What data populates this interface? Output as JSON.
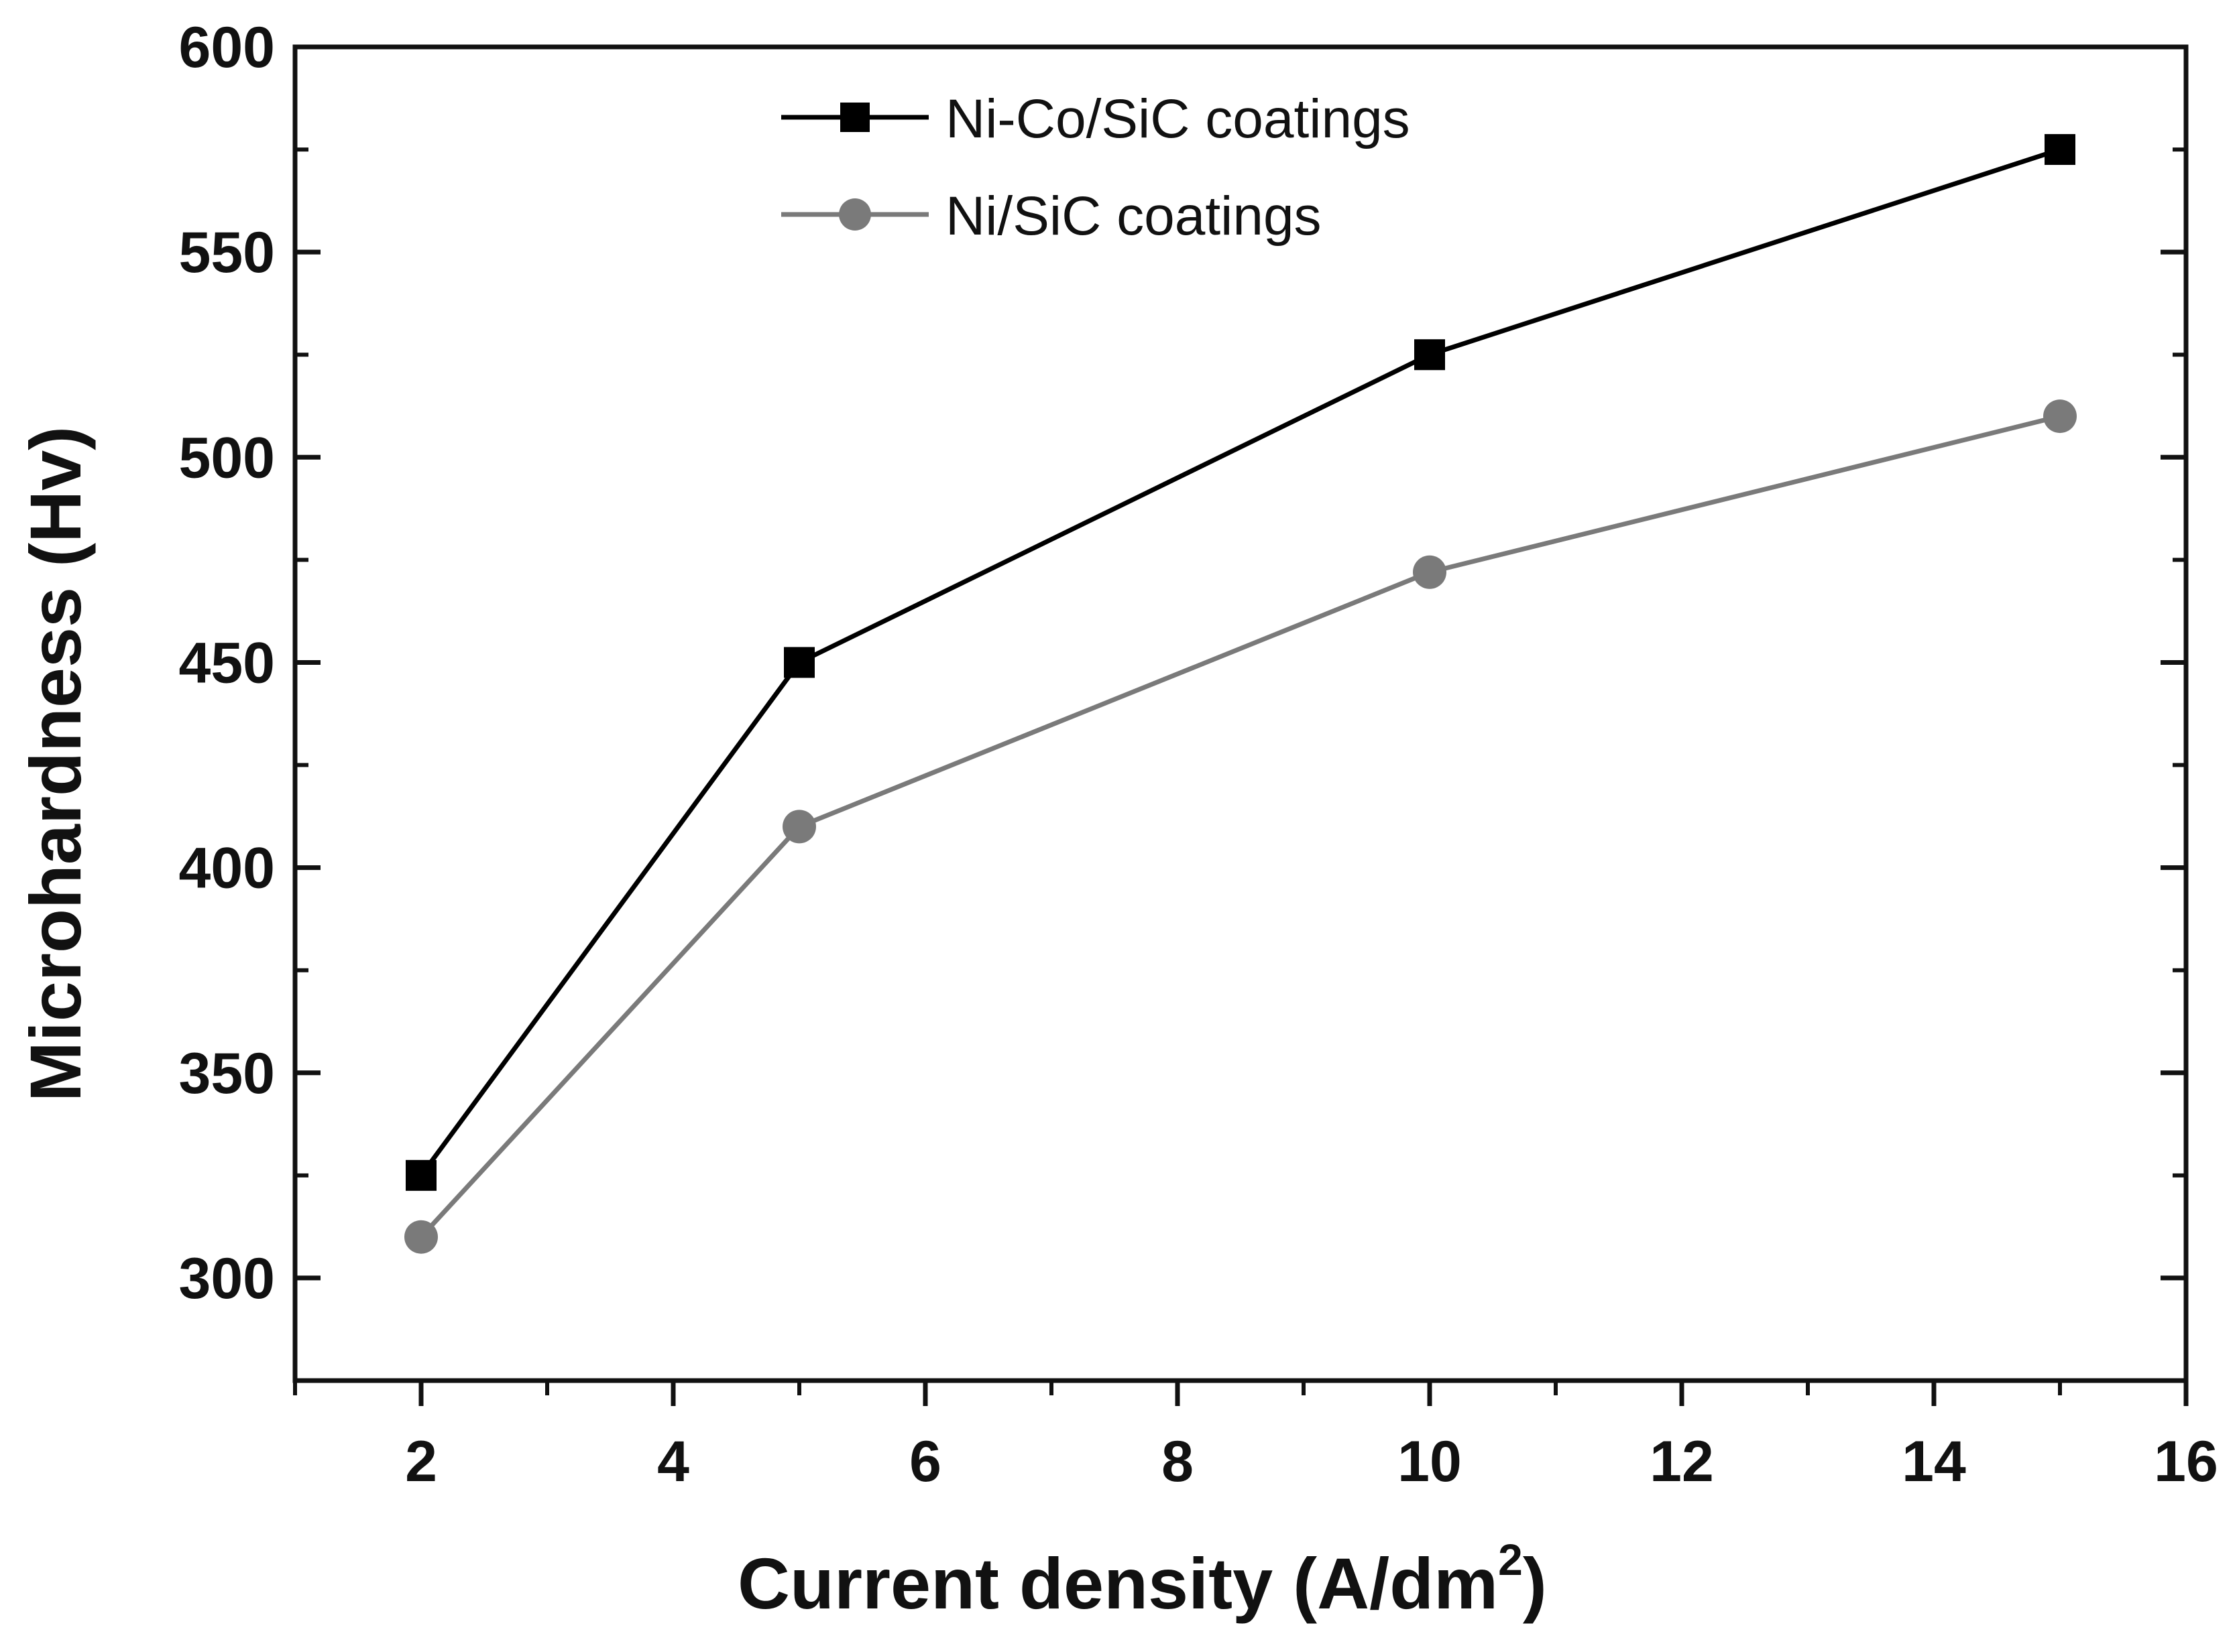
{
  "chart_data": {
    "type": "line",
    "xlabel": "Current density (A/dm",
    "xlabel_sup": "2",
    "xlabel_close": ")",
    "ylabel": "Microhardness (Hv)",
    "xlim": [
      1,
      16
    ],
    "ylim": [
      275,
      600
    ],
    "x_ticks": [
      2,
      4,
      6,
      8,
      10,
      12,
      14,
      16
    ],
    "y_ticks": [
      300,
      350,
      400,
      450,
      500,
      550,
      600
    ],
    "x_tick_labels": [
      "2",
      "4",
      "6",
      "8",
      "10",
      "12",
      "14",
      "16"
    ],
    "y_tick_labels": [
      "300",
      "350",
      "400",
      "450",
      "500",
      "550",
      "600"
    ],
    "grid": false,
    "legend_position": "top-center",
    "x": [
      2,
      5,
      10,
      15
    ],
    "series": [
      {
        "name": "Ni-Co/SiC coatings",
        "marker": "square",
        "color": "#000000",
        "values": [
          325,
          450,
          525,
          575
        ]
      },
      {
        "name": "Ni/SiC coatings",
        "marker": "circle",
        "color": "#7a7a7a",
        "values": [
          310,
          410,
          472,
          510
        ]
      }
    ]
  }
}
